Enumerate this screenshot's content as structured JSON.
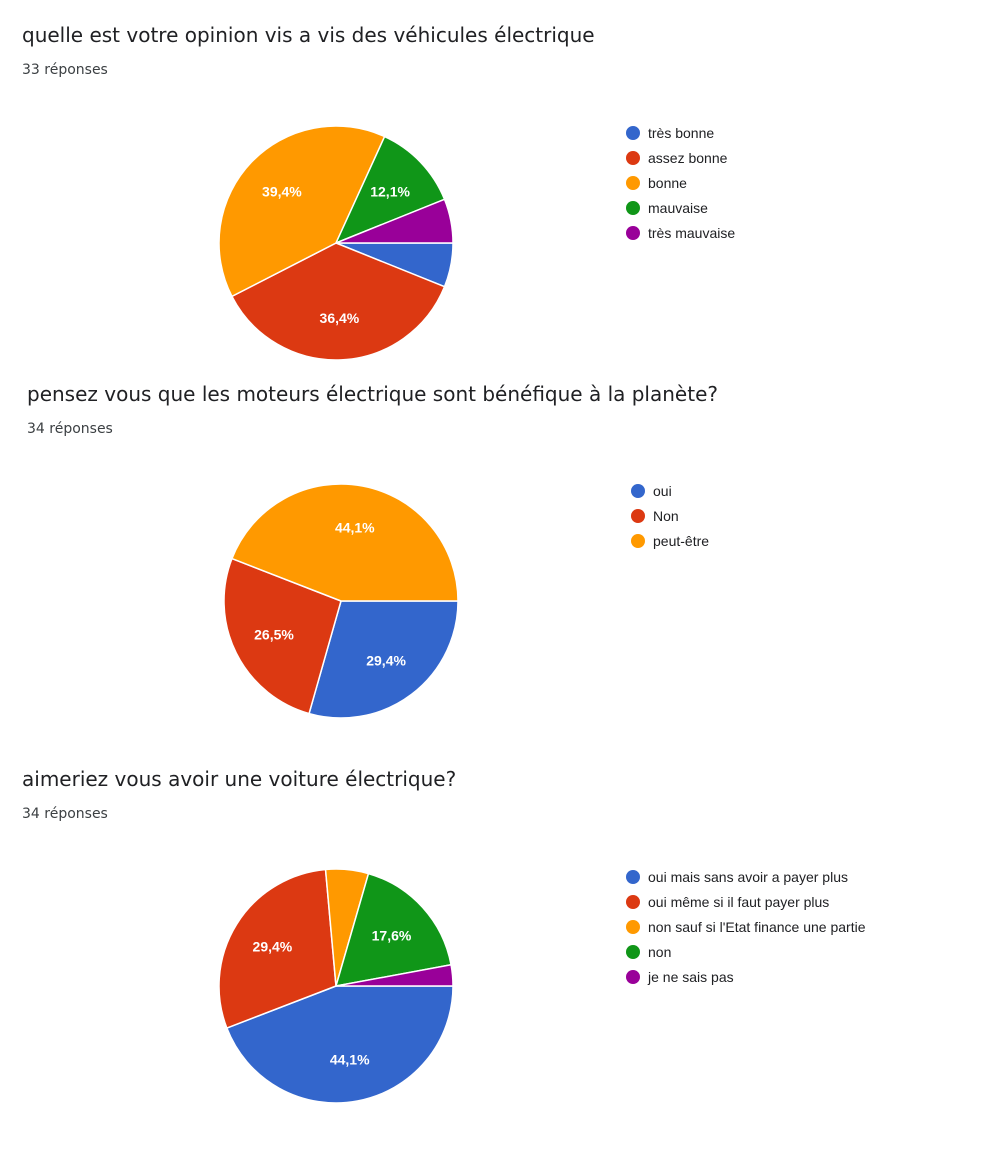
{
  "chart_data": [
    {
      "type": "pie",
      "title": "quelle est votre opinion vis a vis des véhicules électrique",
      "response_count": "33 réponses",
      "categories": [
        "très bonne",
        "assez bonne",
        "bonne",
        "mauvaise",
        "très mauvaise"
      ],
      "values": [
        6.1,
        36.4,
        39.4,
        12.1,
        6.1
      ],
      "data_labels": [
        "",
        "36,4%",
        "39,4%",
        "12,1%",
        ""
      ],
      "colors": [
        "#3366cc",
        "#dc3912",
        "#ff9900",
        "#109618",
        "#990099"
      ],
      "legend_position": "right"
    },
    {
      "type": "pie",
      "title": "pensez vous que les moteurs électrique sont bénéfique à la planète?",
      "response_count": "34 réponses",
      "categories": [
        "oui",
        "Non",
        "peut-être"
      ],
      "values": [
        29.4,
        26.5,
        44.1
      ],
      "data_labels": [
        "29,4%",
        "26,5%",
        "44,1%"
      ],
      "colors": [
        "#3366cc",
        "#dc3912",
        "#ff9900"
      ],
      "legend_position": "right"
    },
    {
      "type": "pie",
      "title": "aimeriez vous avoir une voiture électrique?",
      "response_count": "34 réponses",
      "categories": [
        "oui mais sans avoir a payer plus",
        "oui même si il faut payer plus",
        "non sauf si l'Etat finance une partie",
        "non",
        "je ne sais pas"
      ],
      "values": [
        44.1,
        29.4,
        5.9,
        17.6,
        2.9
      ],
      "data_labels": [
        "44,1%",
        "29,4%",
        "",
        "17,6%",
        ""
      ],
      "colors": [
        "#3366cc",
        "#dc3912",
        "#ff9900",
        "#109618",
        "#990099"
      ],
      "legend_position": "right"
    }
  ]
}
